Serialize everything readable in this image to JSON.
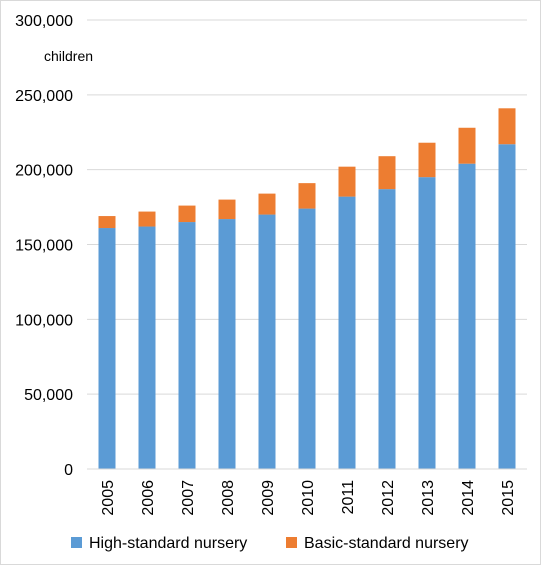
{
  "chart_data": {
    "type": "bar",
    "stacked": true,
    "title": "",
    "xlabel": "",
    "ylabel": "children",
    "ylim": [
      0,
      300000
    ],
    "y_ticks": [
      0,
      50000,
      100000,
      150000,
      200000,
      250000,
      300000
    ],
    "y_tick_labels": [
      "0",
      "50,000",
      "100,000",
      "150,000",
      "200,000",
      "250,000",
      "300,000"
    ],
    "grid": true,
    "legend_position": "bottom",
    "categories": [
      "2005",
      "2006",
      "2007",
      "2008",
      "2009",
      "2010",
      "2011",
      "2012",
      "2013",
      "2014",
      "2015"
    ],
    "series": [
      {
        "name": "High-standard nursery",
        "color": "#5b9bd5",
        "values": [
          161000,
          162000,
          165000,
          167000,
          170000,
          174000,
          182000,
          187000,
          195000,
          204000,
          217000
        ]
      },
      {
        "name": "Basic-standard nursery",
        "color": "#ed7d31",
        "values": [
          8000,
          10000,
          11000,
          13000,
          14000,
          17000,
          20000,
          22000,
          23000,
          24000,
          24000
        ]
      }
    ]
  }
}
